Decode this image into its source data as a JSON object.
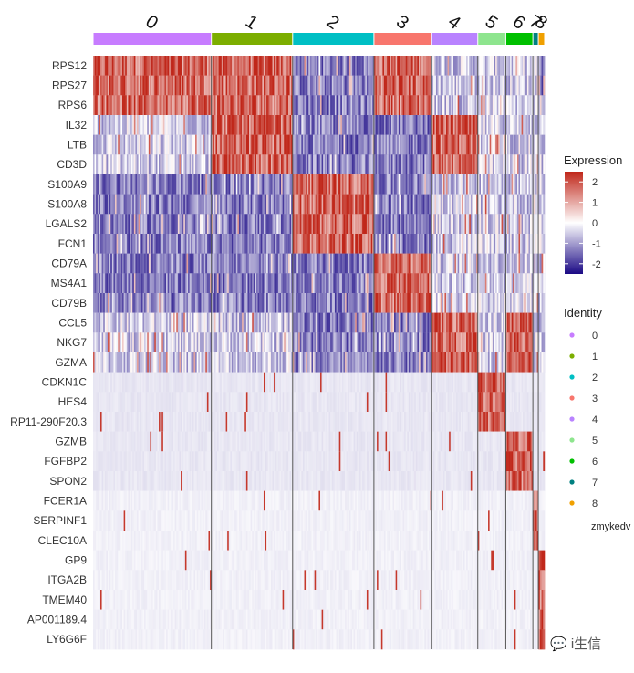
{
  "chart_data": {
    "type": "heatmap",
    "title": "",
    "xlabel": "",
    "ylabel": "",
    "genes": [
      "RPS12",
      "RPS27",
      "RPS6",
      "IL32",
      "LTB",
      "CD3D",
      "S100A9",
      "S100A8",
      "LGALS2",
      "FCN1",
      "CD79A",
      "MS4A1",
      "CD79B",
      "CCL5",
      "NKG7",
      "GZMA",
      "CDKN1C",
      "HES4",
      "RP11-290F20.3",
      "GZMB",
      "FGFBP2",
      "SPON2",
      "FCER1A",
      "SERPINF1",
      "CLEC10A",
      "GP9",
      "ITGA2B",
      "TMEM40",
      "AP001189.4",
      "LY6G6F"
    ],
    "clusters": [
      {
        "name": "0",
        "color": "#c77cff",
        "cell_fraction": 0.262
      },
      {
        "name": "1",
        "color": "#7cae00",
        "cell_fraction": 0.18
      },
      {
        "name": "2",
        "color": "#00bfc4",
        "cell_fraction": 0.18
      },
      {
        "name": "3",
        "color": "#f8766d",
        "cell_fraction": 0.128
      },
      {
        "name": "4",
        "color": "#b983ff",
        "cell_fraction": 0.102
      },
      {
        "name": "5",
        "color": "#8ee58e",
        "cell_fraction": 0.062
      },
      {
        "name": "6",
        "color": "#00c000",
        "cell_fraction": 0.06
      },
      {
        "name": "7",
        "color": "#008080",
        "cell_fraction": 0.012
      },
      {
        "name": "8",
        "color": "#f0a000",
        "cell_fraction": 0.014
      }
    ],
    "expression_pattern_by_gene_group": [
      {
        "genes": [
          "RPS12",
          "RPS27",
          "RPS6"
        ],
        "high_in": [
          "0",
          "1",
          "3"
        ],
        "low_in": [
          "2",
          "8"
        ]
      },
      {
        "genes": [
          "IL32",
          "LTB",
          "CD3D"
        ],
        "high_in": [
          "1",
          "4"
        ],
        "low_in": [
          "2",
          "3"
        ]
      },
      {
        "genes": [
          "S100A9",
          "S100A8",
          "LGALS2",
          "FCN1"
        ],
        "high_in": [
          "2"
        ],
        "low_in": [
          "0",
          "1",
          "3"
        ]
      },
      {
        "genes": [
          "CD79A",
          "MS4A1",
          "CD79B"
        ],
        "high_in": [
          "3"
        ],
        "low_in": [
          "0",
          "1",
          "2"
        ]
      },
      {
        "genes": [
          "CCL5",
          "NKG7",
          "GZMA"
        ],
        "high_in": [
          "4",
          "6"
        ],
        "low_in": [
          "2",
          "3"
        ]
      },
      {
        "genes": [
          "CDKN1C",
          "HES4",
          "RP11-290F20.3"
        ],
        "high_in": [
          "5"
        ],
        "low_in": []
      },
      {
        "genes": [
          "GZMB",
          "FGFBP2",
          "SPON2"
        ],
        "high_in": [
          "6"
        ],
        "low_in": []
      },
      {
        "genes": [
          "FCER1A",
          "SERPINF1",
          "CLEC10A"
        ],
        "high_in": [
          "7"
        ],
        "low_in": []
      },
      {
        "genes": [
          "GP9",
          "ITGA2B",
          "TMEM40",
          "AP001189.4",
          "LY6G6F"
        ],
        "high_in": [
          "8"
        ],
        "low_in": []
      }
    ],
    "color_scale": {
      "title": "Expression",
      "range": [
        -2.5,
        2.5
      ],
      "ticks": [
        "2",
        "1",
        "0",
        "-1",
        "-2"
      ],
      "tick_values": [
        2,
        1,
        0,
        -1,
        -2
      ],
      "low_color": "#1b0a85",
      "mid_color": "#ffffff",
      "high_color": "#c0271a"
    },
    "identity_legend": {
      "title": "Identity",
      "items": [
        {
          "label": "0",
          "color": "#c77cff"
        },
        {
          "label": "1",
          "color": "#7cae00"
        },
        {
          "label": "2",
          "color": "#00bfc4"
        },
        {
          "label": "3",
          "color": "#f8766d"
        },
        {
          "label": "4",
          "color": "#b983ff"
        },
        {
          "label": "5",
          "color": "#8ee58e"
        },
        {
          "label": "6",
          "color": "#00c000"
        },
        {
          "label": "7",
          "color": "#008080"
        },
        {
          "label": "8",
          "color": "#f0a000"
        }
      ]
    },
    "stray_text": "zmykedv"
  },
  "watermark": "💬 i生信"
}
